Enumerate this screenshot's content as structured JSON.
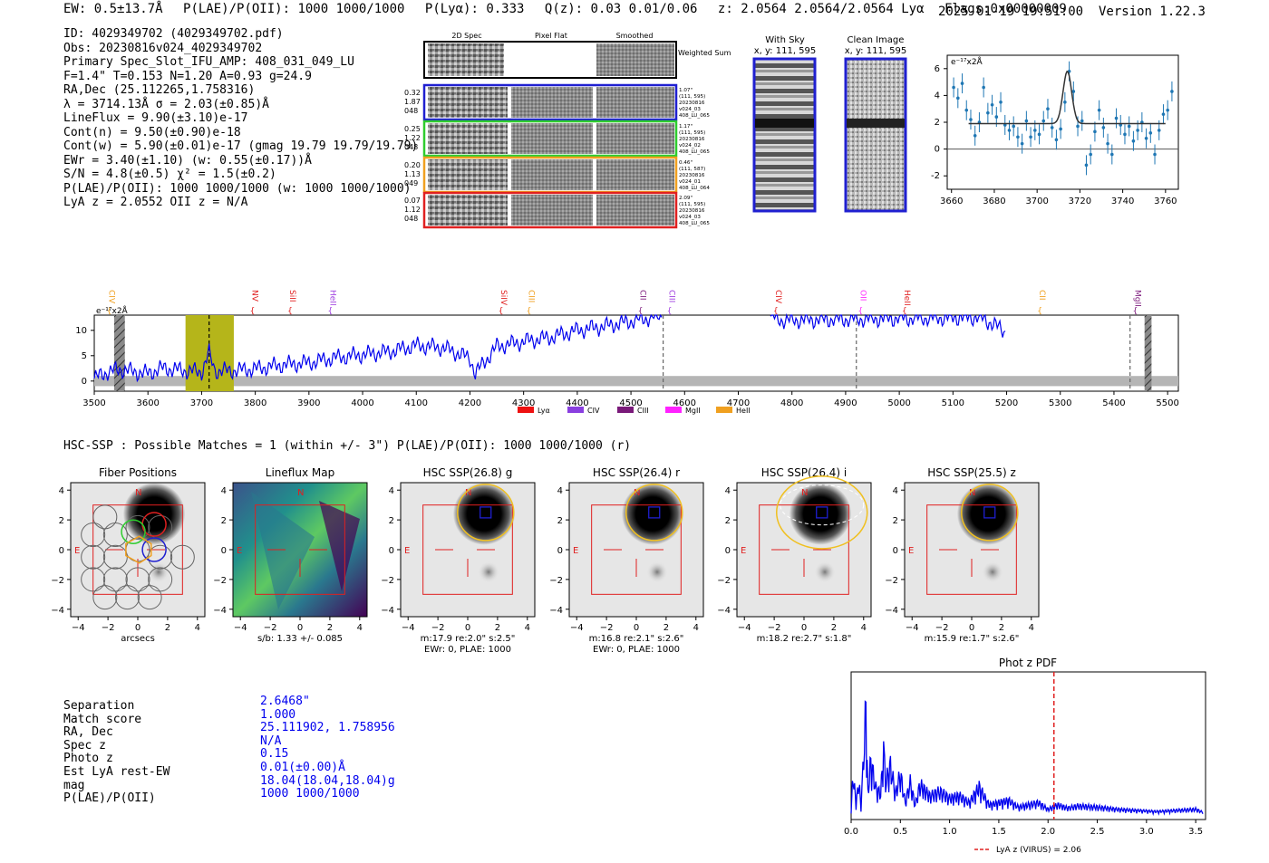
{
  "header": {
    "ew": "EW: 0.5±13.7Å",
    "plae": "P(LAE)/P(OII): 1000 1000/1000",
    "plya": "P(Lyα): 0.333",
    "qz": "Q(z): 0.03 0.01/0.06",
    "z": "z: 2.0564 2.0564/2.0564 Lyα",
    "flags": "Flags:0x00000009",
    "datetime": "2025-01-19 19:51:00",
    "version": "Version 1.22.3"
  },
  "info": [
    "ID: 4029349702 (4029349702.pdf)",
    "Obs: 20230816v024_4029349702",
    "Primary Spec_Slot_IFU_AMP: 408_031_049_LU",
    "F=1.4\"  T=0.153  N=1.20  A=0.93  g=24.9",
    "RA,Dec (25.112265,1.758316)",
    "λ = 3714.13Å  σ = 2.03(±0.85)Å",
    "LineFlux = 9.90(±3.10)e-17",
    "Cont(n) = 9.50(±0.90)e-18",
    "Cont(w) = 5.90(±0.01)e-17 (gmag 19.79 19.79/19.79)",
    "EWr = 3.40(±1.10) (w: 0.55(±0.17))Å",
    "S/N = 4.8(±0.5)  χ² = 1.5(±0.2)",
    "P(LAE)/P(OII): 1000 1000/1000 (w: 1000 1000/1000)",
    "LyA z = 2.0552  OII z = N/A"
  ],
  "cutouts": {
    "col_titles": [
      "2D Spec",
      "Pixel Flat",
      "Smoothed"
    ],
    "weighted_label": "Weighted Sum",
    "rows": [
      {
        "left": [
          "0.32",
          "1.87",
          "048"
        ],
        "right": [
          "1.07\"",
          "(111, 595)",
          "20230816",
          "v024_03",
          "408_LU_065"
        ],
        "color": "#1f1fd0"
      },
      {
        "left": [
          "0.25",
          "1.22",
          "048"
        ],
        "right": [
          "1.17\"",
          "(111, 595)",
          "20230816",
          "v024_02",
          "408_LU_065"
        ],
        "color": "#2ecc2e"
      },
      {
        "left": [
          "0.20",
          "1.13",
          "049"
        ],
        "right": [
          "0.46\"",
          "(111, 587)",
          "20230816",
          "v024_01",
          "408_LU_064"
        ],
        "color": "#f0a020"
      },
      {
        "left": [
          "0.07",
          "1.12",
          "048"
        ],
        "right": [
          "2.09\"",
          "(111, 595)",
          "20230816",
          "v024_03",
          "408_LU_065"
        ],
        "color": "#e02020"
      }
    ]
  },
  "sky_panels": [
    {
      "title": "With Sky",
      "coords": "x, y: 111, 595"
    },
    {
      "title": "Clean Image",
      "coords": "x, y: 111, 595"
    }
  ],
  "line_fit": {
    "ylabel": "e⁻¹⁷x2Å",
    "xticks": [
      "3660",
      "3680",
      "3700",
      "3720",
      "3740",
      "3760"
    ],
    "yticks": [
      "6",
      "4",
      "2",
      "0",
      "-2"
    ]
  },
  "spectrum": {
    "ylabel": "e⁻¹⁷x2Å",
    "xticks": [
      "3500",
      "3600",
      "3700",
      "3800",
      "3900",
      "4000",
      "4100",
      "4200",
      "4300",
      "4400",
      "4500",
      "4600",
      "4700",
      "4800",
      "4900",
      "5000",
      "5100",
      "5200",
      "5300",
      "5400",
      "5500"
    ],
    "yticks": [
      "10",
      "5",
      "0"
    ],
    "lines": [
      {
        "name": "CIV",
        "color": "#f0a020"
      },
      {
        "name": "NV",
        "color": "#e02020"
      },
      {
        "name": "SiII",
        "color": "#e02020"
      },
      {
        "name": "HeII",
        "color": "#a040e0"
      },
      {
        "name": "SiIV",
        "color": "#e02020"
      },
      {
        "name": "CIII",
        "color": "#f0a020"
      },
      {
        "name": "CII",
        "color": "#802080"
      },
      {
        "name": "CIII",
        "color": "#a040e0"
      },
      {
        "name": "CIV",
        "color": "#e02020"
      },
      {
        "name": "OII",
        "color": "#ff30ff"
      },
      {
        "name": "HeII",
        "color": "#e02020"
      },
      {
        "name": "CII",
        "color": "#f0a020"
      },
      {
        "name": "MgII",
        "color": "#802080"
      }
    ],
    "legend": [
      {
        "label": "Lyα",
        "color": "#ee1111"
      },
      {
        "label": "CIV",
        "color": "#8a3fe0"
      },
      {
        "label": "CIII",
        "color": "#7a1a7a"
      },
      {
        "label": "MgII",
        "color": "#ff22ff"
      },
      {
        "label": "HeII",
        "color": "#f0a020"
      }
    ]
  },
  "hsc": {
    "summary": "HSC-SSP : Possible Matches = 1 (within +/- 3\")  P(LAE)/P(OII): 1000 1000/1000 (r)",
    "panels": [
      {
        "title": "Fiber Positions",
        "xlabel": "arcsecs",
        "cap2": ""
      },
      {
        "title": "Lineflux Map",
        "xlabel": "s/b: 1.33 +/- 0.085",
        "cap2": ""
      },
      {
        "title": "HSC SSP(26.8) g",
        "xlabel": "m:17.9  re:2.0\"  s:2.5\"",
        "cap2": "EWr: 0, PLAE: 1000"
      },
      {
        "title": "HSC SSP(26.4) r",
        "xlabel": "m:16.8  re:2.1\"  s:2.6\"",
        "cap2": "EWr: 0, PLAE: 1000"
      },
      {
        "title": "HSC SSP(26.4) i",
        "xlabel": "m:18.2  re:2.7\"  s:1.8\"",
        "cap2": ""
      },
      {
        "title": "HSC SSP(25.5) z",
        "xlabel": "m:15.9  re:1.7\"  s:2.6\"",
        "cap2": ""
      }
    ],
    "ticks": [
      "4",
      "2",
      "0",
      "−2",
      "−4"
    ],
    "xticks": [
      "−4",
      "−2",
      "0",
      "2",
      "4"
    ],
    "compass": {
      "n": "N",
      "e": "E"
    }
  },
  "match_table": {
    "labels": [
      "Separation",
      "Match score",
      "RA, Dec",
      "Spec z",
      "Photo z",
      "Est LyA rest-EW",
      "mag",
      "P(LAE)/P(OII)"
    ],
    "values": [
      "2.6468\"",
      "1.000",
      "25.111902, 1.758956",
      "N/A",
      "0.15",
      "0.01(±0.00)Å",
      "18.04(18.04,18.04)g",
      "1000 1000/1000"
    ]
  },
  "chart_data": [
    {
      "type": "line",
      "title": "",
      "xlabel": "",
      "ylabel": "e⁻¹⁷x2Å",
      "xlim": [
        3500,
        5520
      ],
      "ylim": [
        -2,
        13
      ],
      "series": [
        {
          "name": "spectrum",
          "x": [
            3500,
            3525,
            3550,
            3575,
            3600,
            3625,
            3650,
            3675,
            3700,
            3714,
            3725,
            3750,
            3775,
            3800,
            3850,
            3900,
            3950,
            4000,
            4050,
            4100,
            4150,
            4200,
            4210,
            4250,
            4300,
            4350,
            4400,
            4450,
            4500,
            4530,
            4560
          ],
          "values": [
            0.5,
            1.8,
            2.3,
            1.8,
            1.5,
            2.5,
            2.3,
            2.0,
            1.8,
            5.5,
            2.0,
            2.0,
            2.2,
            2.4,
            3.2,
            3.6,
            4.6,
            5.2,
            5.8,
            7.0,
            6.6,
            4.5,
            1.5,
            6.8,
            7.8,
            8.6,
            10.0,
            10.8,
            11.8,
            12.4,
            13.0
          ]
        },
        {
          "name": "spectrum-tail",
          "x": [
            4760,
            4780,
            5150,
            5175,
            5200
          ],
          "values": [
            12.8,
            12.0,
            12.6,
            11.2,
            9.6
          ]
        }
      ],
      "shaded": [
        {
          "from": 3670,
          "to": 3760,
          "color": "yellow-olive"
        }
      ],
      "marker_lines": [
        3714,
        4560,
        4920,
        5430
      ]
    },
    {
      "type": "scatter",
      "title": "",
      "ylabel": "e⁻¹⁷x2Å",
      "xlim": [
        3658,
        3766
      ],
      "ylim": [
        -3,
        7
      ],
      "x": [
        3661,
        3663,
        3665,
        3667,
        3669,
        3671,
        3673,
        3675,
        3677,
        3679,
        3681,
        3683,
        3685,
        3687,
        3689,
        3691,
        3693,
        3695,
        3697,
        3699,
        3701,
        3703,
        3705,
        3707,
        3709,
        3711,
        3713,
        3715,
        3717,
        3719,
        3721,
        3723,
        3725,
        3727,
        3729,
        3731,
        3733,
        3735,
        3737,
        3739,
        3741,
        3743,
        3745,
        3747,
        3749,
        3751,
        3753,
        3755,
        3757,
        3759,
        3761,
        3763
      ],
      "values": [
        4.6,
        3.8,
        4.9,
        2.9,
        2.2,
        1.0,
        2.0,
        4.6,
        2.7,
        3.3,
        2.4,
        3.5,
        1.8,
        1.4,
        1.7,
        0.9,
        0.4,
        2.1,
        0.9,
        1.4,
        1.1,
        2.1,
        3.0,
        1.6,
        0.7,
        1.5,
        3.5,
        5.8,
        4.3,
        1.7,
        2.1,
        -1.2,
        -0.4,
        1.3,
        2.9,
        1.6,
        0.4,
        -0.4,
        2.3,
        1.8,
        1.1,
        1.7,
        0.6,
        1.4,
        2.0,
        0.8,
        1.2,
        -0.4,
        1.4,
        2.6,
        2.9,
        4.3
      ],
      "fit": {
        "center": 3714.13,
        "sigma": 2.03,
        "amplitude": 3.9,
        "baseline": 1.9
      }
    },
    {
      "type": "line",
      "title": "Phot z PDF",
      "xlabel": "",
      "ylabel": "",
      "xlim": [
        0.0,
        3.6
      ],
      "ylim": [
        0,
        1
      ],
      "xticks": [
        0.0,
        0.5,
        1.0,
        1.5,
        2.0,
        2.5,
        3.0,
        3.5
      ],
      "legend": [
        "LyA z (VIRUS) = 2.06"
      ],
      "marker": 2.06,
      "series": [
        {
          "name": "pdf",
          "x": [
            0.0,
            0.02,
            0.05,
            0.08,
            0.1,
            0.12,
            0.15,
            0.17,
            0.2,
            0.25,
            0.3,
            0.33,
            0.35,
            0.4,
            0.45,
            0.5,
            0.55,
            0.6,
            0.65,
            0.7,
            0.8,
            0.9,
            1.0,
            1.1,
            1.2,
            1.3,
            1.4,
            1.5,
            1.6,
            1.7,
            1.8,
            1.9,
            2.0,
            2.1,
            2.2,
            2.3,
            2.5,
            2.7,
            2.9,
            3.1,
            3.3,
            3.5,
            3.58
          ],
          "values": [
            0.05,
            0.36,
            0.12,
            0.3,
            0.08,
            0.4,
            0.98,
            0.2,
            0.5,
            0.25,
            0.2,
            0.6,
            0.3,
            0.45,
            0.2,
            0.38,
            0.12,
            0.3,
            0.1,
            0.28,
            0.18,
            0.22,
            0.16,
            0.18,
            0.12,
            0.26,
            0.1,
            0.12,
            0.14,
            0.08,
            0.1,
            0.12,
            0.06,
            0.1,
            0.07,
            0.09,
            0.08,
            0.06,
            0.05,
            0.04,
            0.05,
            0.06,
            0.03
          ]
        }
      ]
    }
  ]
}
